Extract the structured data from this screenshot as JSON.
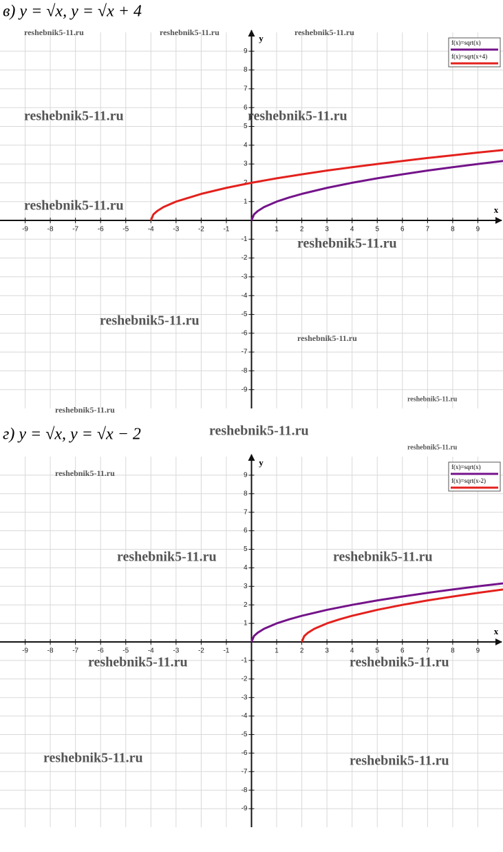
{
  "chart_data": [
    {
      "type": "line",
      "title": "в) y = √x,      y = √x + 4",
      "x_label": "x",
      "y_label": "y",
      "xlim": [
        -10,
        10
      ],
      "ylim": [
        -10,
        10
      ],
      "xticks": [
        -9,
        -8,
        -7,
        -6,
        -5,
        -4,
        -3,
        -2,
        -1,
        1,
        2,
        3,
        4,
        5,
        6,
        7,
        8,
        9
      ],
      "yticks": [
        -9,
        -8,
        -7,
        -6,
        -5,
        -4,
        -3,
        -2,
        -1,
        1,
        2,
        3,
        4,
        5,
        6,
        7,
        8,
        9
      ],
      "grid": true,
      "legend": "upper right",
      "series": [
        {
          "name": "f(x)=sqrt(x)",
          "color": "#74138a",
          "x": [
            0,
            0.1,
            0.25,
            0.5,
            1,
            1.5,
            2,
            3,
            4,
            5,
            6,
            7,
            8,
            9,
            10
          ],
          "values": [
            0,
            0.32,
            0.5,
            0.71,
            1,
            1.22,
            1.41,
            1.73,
            2,
            2.24,
            2.45,
            2.65,
            2.83,
            3,
            3.16
          ]
        },
        {
          "name": "f(x)=sqrt(x+4)",
          "color": "#e3211d",
          "x": [
            -4,
            -3.9,
            -3.75,
            -3.5,
            -3,
            -2,
            -1,
            0,
            1,
            2,
            3,
            4,
            5,
            6,
            7,
            8,
            9,
            10
          ],
          "values": [
            0,
            0.32,
            0.5,
            0.71,
            1,
            1.41,
            1.73,
            2,
            2.24,
            2.45,
            2.65,
            2.83,
            3,
            3.16,
            3.32,
            3.46,
            3.61,
            3.74
          ]
        }
      ]
    },
    {
      "type": "line",
      "title": "г) y = √x,      y = √x − 2",
      "x_label": "x",
      "y_label": "y",
      "xlim": [
        -10,
        10
      ],
      "ylim": [
        -10,
        10
      ],
      "xticks": [
        -9,
        -8,
        -7,
        -6,
        -5,
        -4,
        -3,
        -2,
        -1,
        1,
        2,
        3,
        4,
        5,
        6,
        7,
        8,
        9
      ],
      "yticks": [
        -9,
        -8,
        -7,
        -6,
        -5,
        -4,
        -3,
        -2,
        -1,
        1,
        2,
        3,
        4,
        5,
        6,
        7,
        8,
        9
      ],
      "grid": true,
      "legend": "upper right",
      "series": [
        {
          "name": "f(x)=sqrt(x)",
          "color": "#74138a",
          "x": [
            0,
            0.1,
            0.25,
            0.5,
            1,
            1.5,
            2,
            3,
            4,
            5,
            6,
            7,
            8,
            9,
            10
          ],
          "values": [
            0,
            0.32,
            0.5,
            0.71,
            1,
            1.22,
            1.41,
            1.73,
            2,
            2.24,
            2.45,
            2.65,
            2.83,
            3,
            3.16
          ]
        },
        {
          "name": "f(x)=sqrt(x-2)",
          "color": "#e3211d",
          "x": [
            2,
            2.1,
            2.25,
            2.5,
            3,
            3.5,
            4,
            5,
            6,
            7,
            8,
            9,
            10
          ],
          "values": [
            0,
            0.32,
            0.5,
            0.71,
            1,
            1.22,
            1.41,
            1.73,
            2,
            2.24,
            2.45,
            2.65,
            2.83
          ]
        }
      ]
    }
  ],
  "watermark": "reshebnik5-11.ru"
}
